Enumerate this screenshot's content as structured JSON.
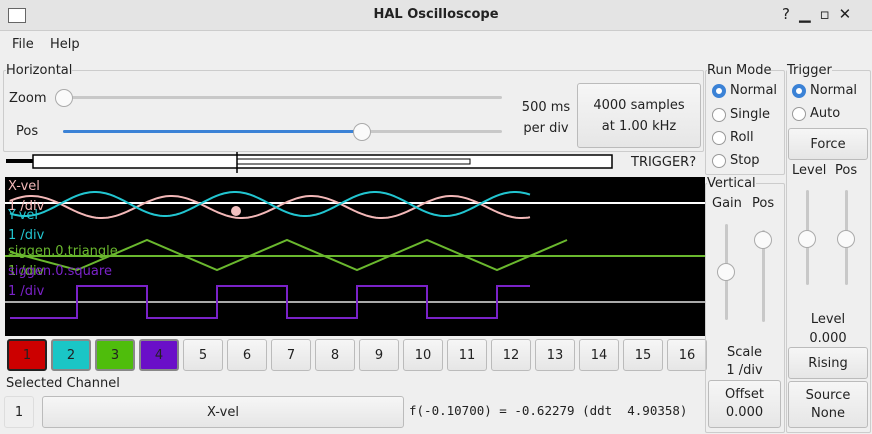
{
  "window": {
    "title": "HAL Oscilloscope"
  },
  "menu": [
    "File",
    "Help"
  ],
  "horizontal": {
    "title": "Horizontal",
    "zoom_label": "Zoom",
    "pos_label": "Pos",
    "scale": [
      "500 ms",
      "per div"
    ],
    "samples_button": [
      "4000 samples",
      "at 1.00 kHz"
    ],
    "trigger_status": "TRIGGER?"
  },
  "run_mode": {
    "title": "Run Mode",
    "options": [
      "Normal",
      "Single",
      "Roll",
      "Stop"
    ]
  },
  "trigger": {
    "title": "Trigger",
    "options": [
      "Normal",
      "Auto"
    ],
    "force": "Force",
    "level_label": "Level",
    "pos_label": "Pos",
    "level": [
      "Level",
      "0.000"
    ],
    "edge": "Rising",
    "source": [
      "Source",
      "None"
    ]
  },
  "vertical": {
    "title": "Vertical",
    "gain_label": "Gain",
    "pos_label": "Pos",
    "scale": [
      "Scale",
      "1 /div"
    ],
    "offset": [
      "Offset",
      "0.000"
    ]
  },
  "scope": {
    "traces": [
      {
        "name": "X-vel",
        "scale": "1 /div"
      },
      {
        "name": "Y-vel",
        "scale": "1 /div"
      },
      {
        "name": "siggen.0.triangle",
        "scale": "1 /div"
      },
      {
        "name": "siggen.0.square",
        "scale": "1 /div"
      }
    ]
  },
  "channels": [
    "1",
    "2",
    "3",
    "4",
    "5",
    "6",
    "7",
    "8",
    "9",
    "10",
    "11",
    "12",
    "13",
    "14",
    "15",
    "16"
  ],
  "selected_channel": {
    "title": "Selected Channel",
    "number": "1",
    "name": "X-vel",
    "readout": "f(-0.10700) = -0.62279 (ddt  4.90358)"
  }
}
